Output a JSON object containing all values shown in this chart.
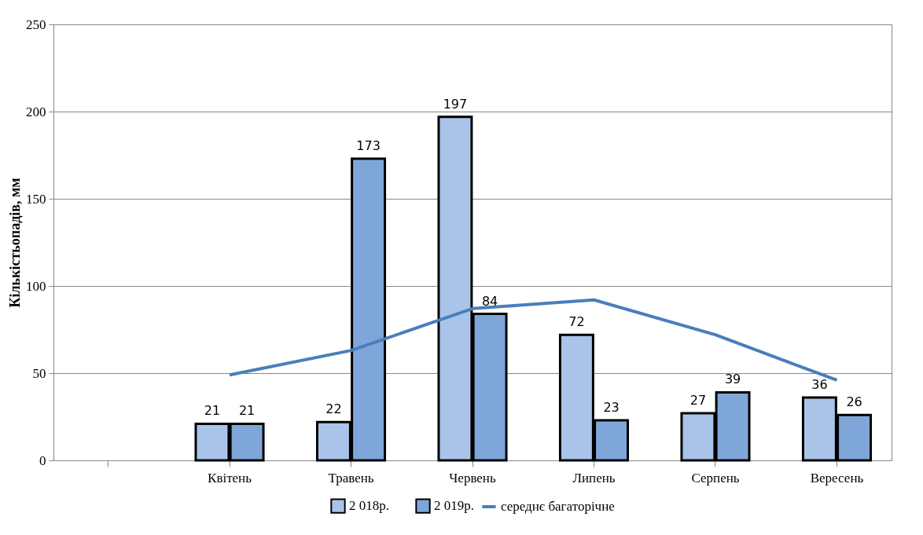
{
  "chart_data": {
    "type": "bar",
    "ylabel": "Кількістьопадів, мм",
    "categories": [
      null,
      "Квітень",
      "Травень",
      "Червень",
      "Липень",
      "Серпень",
      "Вересень"
    ],
    "series": [
      {
        "name": "2 018р.",
        "color": "#a9c4e8",
        "values": [
          null,
          21,
          22,
          197,
          72,
          27,
          36
        ],
        "value_labels": [
          null,
          "21",
          "22",
          "197",
          "72",
          "27",
          "36"
        ]
      },
      {
        "name": "2 019р.",
        "color": "#7fa6d9",
        "values": [
          null,
          21,
          173,
          84,
          23,
          39,
          26
        ],
        "value_labels": [
          null,
          "21",
          "173",
          "84",
          "23",
          "39",
          "26"
        ]
      },
      {
        "name": "середнє багаторічне",
        "type": "line",
        "color": "#4a7ebb",
        "values": [
          null,
          49,
          63,
          87,
          92,
          72,
          46
        ]
      }
    ],
    "ylim": [
      0,
      250
    ],
    "yticks": [
      0,
      50,
      100,
      150,
      200,
      250
    ],
    "grid": "y",
    "legend": "bottom",
    "marker": "none"
  }
}
